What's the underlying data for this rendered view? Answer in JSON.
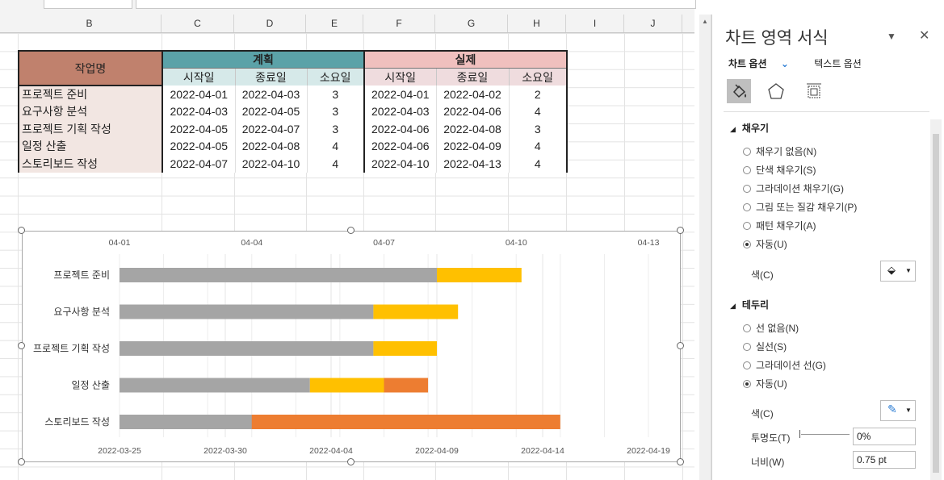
{
  "columns": [
    "B",
    "C",
    "D",
    "E",
    "F",
    "G",
    "H",
    "I",
    "J"
  ],
  "table": {
    "task_header": "작업명",
    "plan_header": "계획",
    "actual_header": "실제",
    "sub_headers": [
      "시작일",
      "종료일",
      "소요일",
      "시작일",
      "종료일",
      "소요일"
    ],
    "rows": [
      {
        "name": "프로젝트 준비",
        "ps": "2022-04-01",
        "pe": "2022-04-03",
        "pd": "3",
        "as": "2022-04-01",
        "ae": "2022-04-02",
        "ad": "2"
      },
      {
        "name": "요구사항 분석",
        "ps": "2022-04-03",
        "pe": "2022-04-05",
        "pd": "3",
        "as": "2022-04-03",
        "ae": "2022-04-06",
        "ad": "4"
      },
      {
        "name": "프로젝트 기획 작성",
        "ps": "2022-04-05",
        "pe": "2022-04-07",
        "pd": "3",
        "as": "2022-04-06",
        "ae": "2022-04-08",
        "ad": "3"
      },
      {
        "name": "일정 산출",
        "ps": "2022-04-05",
        "pe": "2022-04-08",
        "pd": "4",
        "as": "2022-04-06",
        "ae": "2022-04-09",
        "ad": "4"
      },
      {
        "name": "스토리보드 작성",
        "ps": "2022-04-07",
        "pe": "2022-04-10",
        "pd": "4",
        "as": "2022-04-10",
        "ae": "2022-04-13",
        "ad": "4"
      }
    ]
  },
  "chart_data": {
    "type": "bar",
    "orientation": "horizontal-gantt",
    "categories": [
      "프로젝트 준비",
      "요구사항 분석",
      "프로젝트 기획 작성",
      "일정 산출",
      "스토리보드 작성"
    ],
    "bottom_axis": {
      "ticks": [
        "2022-03-25",
        "2022-03-30",
        "2022-04-04",
        "2022-04-09",
        "2022-04-14",
        "2022-04-19"
      ],
      "range": [
        "2022-03-25",
        "2022-04-19"
      ]
    },
    "top_axis": {
      "ticks": [
        "04-01",
        "04-04",
        "04-07",
        "04-10",
        "04-13"
      ],
      "range": [
        "2022-04-01",
        "2022-04-13"
      ]
    },
    "series": [
      {
        "color": "#a5a5a5",
        "values": [
          "2022-04-09",
          "2022-04-06",
          "2022-04-06",
          "2022-04-03",
          "2022-04-01"
        ],
        "axis": "bottom",
        "start": "2022-03-25"
      },
      {
        "color": "#ffc000",
        "values": [
          [
            "2022-04-09",
            "2022-04-13"
          ],
          [
            "2022-04-06",
            "2022-04-10"
          ],
          [
            "2022-04-06",
            "2022-04-09"
          ],
          [
            "2022-04-03",
            "2022-04-07"
          ],
          [
            "2022-04-01",
            "2022-04-03"
          ]
        ],
        "axis": "bottom"
      },
      {
        "color": "#ed7d31",
        "values": [
          null,
          null,
          null,
          [
            "2022-04-07",
            "2022-04-08"
          ],
          [
            "2022-04-04",
            "2022-04-11"
          ]
        ],
        "axis": "top"
      }
    ],
    "grid": true
  },
  "pane": {
    "title": "차트 영역 서식",
    "tab_chart": "차트 옵션",
    "tab_text": "텍스트 옵션",
    "fill_section": "채우기",
    "fill_options": [
      "채우기 없음(N)",
      "단색 채우기(S)",
      "그라데이션 채우기(G)",
      "그림 또는 질감 채우기(P)",
      "패턴 채우기(A)",
      "자동(U)"
    ],
    "fill_color_label": "색(C)",
    "border_section": "테두리",
    "border_options": [
      "선 없음(N)",
      "실선(S)",
      "그라데이션 선(G)",
      "자동(U)"
    ],
    "border_color_label": "색(C)",
    "transparency_label": "투명도(T)",
    "transparency_value": "0%",
    "width_label": "너비(W)",
    "width_value": "0.75 pt"
  }
}
